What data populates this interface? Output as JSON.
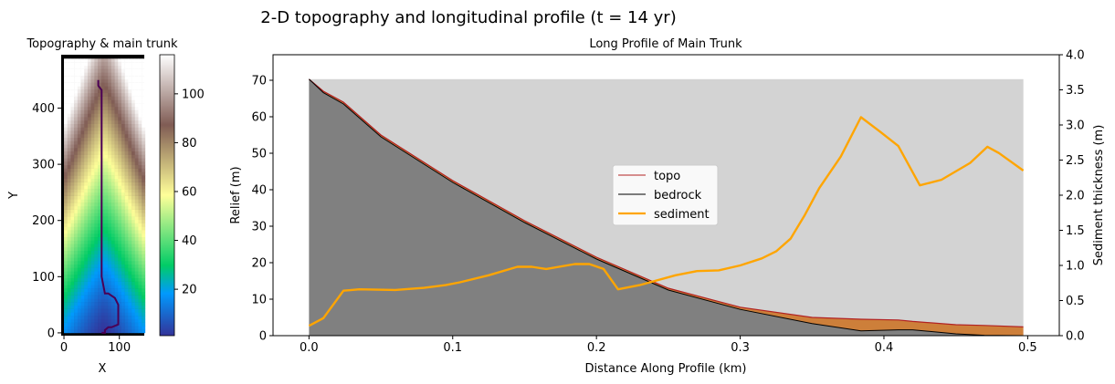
{
  "figure": {
    "suptitle": "2-D topography and longitudinal profile (t = 14 yr)"
  },
  "chart_data": [
    {
      "type": "heatmap",
      "title": "Topography & main trunk",
      "xlabel": "X",
      "ylabel": "Y",
      "xlim": [
        -5,
        145
      ],
      "ylim": [
        -5,
        495
      ],
      "xticks": [
        0,
        100
      ],
      "yticks": [
        0,
        100,
        200,
        300,
        400
      ],
      "grid_cols": 24,
      "grid_rows": 80,
      "cell_size": 6.1,
      "colorbar": {
        "range": [
          1,
          116
        ],
        "ticks": [
          20,
          40,
          60,
          80,
          100
        ],
        "colormap": "terrain"
      },
      "trunk_path": {
        "x": [
          62,
          62,
          68,
          68,
          68,
          68,
          68,
          74,
          80,
          92,
          98,
          98,
          86,
          80,
          74,
          74,
          68
        ],
        "y": [
          450,
          440,
          432,
          400,
          300,
          200,
          100,
          70,
          70,
          62,
          50,
          15,
          10,
          10,
          5,
          0,
          0
        ]
      }
    },
    {
      "type": "area",
      "title": "Long Profile of Main Trunk",
      "xlabel": "Distance Along Profile (km)",
      "ylabel": "Relief (m)",
      "y2label": "Sediment thickness (m)",
      "xlim": [
        -0.025,
        0.522
      ],
      "ylim": [
        0,
        77
      ],
      "y2lim": [
        0,
        4.0
      ],
      "xticks": [
        "0.0",
        "0.1",
        "0.2",
        "0.3",
        "0.4",
        "0.5"
      ],
      "yticks": [
        "0",
        "10",
        "20",
        "30",
        "40",
        "50",
        "60",
        "70"
      ],
      "y2ticks": [
        "0.0",
        "0.5",
        "1.0",
        "1.5",
        "2.0",
        "2.5",
        "3.0",
        "3.5",
        "4.0"
      ],
      "background_top": 70.3,
      "legend": {
        "placement": "center",
        "entries": [
          "topo",
          "bedrock",
          "sediment"
        ]
      },
      "colors": {
        "topo": "#b22222",
        "bedrock": "#000000",
        "sediment": "#ffa500",
        "sediment_fill": "#cd7f3a",
        "bedrock_fill": "#808080",
        "background_fill": "#d3d3d3"
      },
      "distance_km": [
        0.0,
        0.01,
        0.024,
        0.05,
        0.1,
        0.15,
        0.2,
        0.25,
        0.3,
        0.35,
        0.384,
        0.41,
        0.42,
        0.45,
        0.47,
        0.497
      ],
      "series": [
        {
          "name": "topo",
          "axis": "left",
          "values": [
            70.3,
            67.0,
            64.0,
            55.0,
            42.5,
            31.5,
            21.5,
            13.0,
            7.8,
            5.0,
            4.5,
            4.3,
            3.9,
            3.0,
            2.8,
            2.4
          ]
        },
        {
          "name": "bedrock",
          "axis": "left",
          "values": [
            70.3,
            66.6,
            63.5,
            54.5,
            42.0,
            31.0,
            21.0,
            12.5,
            7.2,
            3.3,
            1.3,
            1.6,
            1.6,
            0.5,
            0.1,
            0.0
          ]
        },
        {
          "name": "sediment",
          "axis": "right",
          "x": [
            0.0,
            0.01,
            0.024,
            0.035,
            0.06,
            0.08,
            0.095,
            0.105,
            0.125,
            0.145,
            0.155,
            0.165,
            0.185,
            0.195,
            0.205,
            0.215,
            0.23,
            0.255,
            0.27,
            0.285,
            0.3,
            0.315,
            0.325,
            0.335,
            0.345,
            0.355,
            0.37,
            0.384,
            0.397,
            0.41,
            0.425,
            0.44,
            0.46,
            0.472,
            0.48,
            0.497
          ],
          "values": [
            0.14,
            0.25,
            0.64,
            0.66,
            0.65,
            0.68,
            0.72,
            0.76,
            0.86,
            0.98,
            0.98,
            0.95,
            1.02,
            1.02,
            0.95,
            0.66,
            0.72,
            0.86,
            0.92,
            0.93,
            1.0,
            1.1,
            1.2,
            1.38,
            1.72,
            2.1,
            2.55,
            3.11,
            2.91,
            2.7,
            2.14,
            2.22,
            2.46,
            2.69,
            2.6,
            2.35
          ]
        }
      ]
    }
  ]
}
